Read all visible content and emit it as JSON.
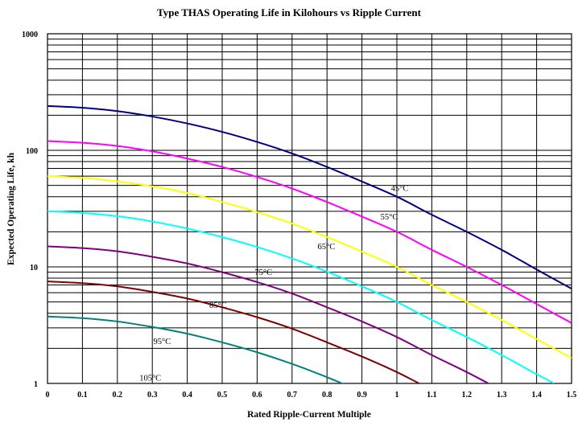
{
  "chart_data": {
    "type": "line",
    "title": "Type THAS Operating Life in Kilohours vs Ripple Current",
    "xlabel": "Rated Ripple-Current Multiple",
    "ylabel": "Expected Operating Life, kh",
    "xlim": [
      0,
      1.5
    ],
    "ylim": [
      1,
      1000
    ],
    "y_scale": "log",
    "grid": true,
    "legend": "none",
    "x_ticks": [
      "0",
      "0.1",
      "0.2",
      "0.3",
      "0.4",
      "0.5",
      "0.6",
      "0.7",
      "0.8",
      "0.9",
      "1",
      "1.1",
      "1.2",
      "1.3",
      "1.4",
      "1.5"
    ],
    "y_ticks": [
      "1",
      "10",
      "100",
      "1000"
    ],
    "series": [
      {
        "name": "45°C",
        "color": "#000080",
        "x": [
          0,
          0.1,
          0.2,
          0.3,
          0.4,
          0.5,
          0.6,
          0.7,
          0.8,
          0.9,
          1.0,
          1.1,
          1.2,
          1.3,
          1.4,
          1.5
        ],
        "y": [
          240,
          232,
          217,
          195,
          170,
          144,
          118,
          94,
          72,
          54,
          40,
          28,
          20,
          14,
          9.5,
          6.5
        ]
      },
      {
        "name": "55°C",
        "color": "#ff00ff",
        "x": [
          0,
          0.1,
          0.2,
          0.3,
          0.4,
          0.5,
          0.6,
          0.7,
          0.8,
          0.9,
          1.0,
          1.1,
          1.2,
          1.3,
          1.4,
          1.5
        ],
        "y": [
          120,
          116,
          109,
          98,
          85,
          72,
          59,
          47,
          36,
          27,
          20,
          14,
          10,
          7,
          4.8,
          3.3
        ]
      },
      {
        "name": "65°C",
        "color": "#ffff00",
        "x": [
          0,
          0.1,
          0.2,
          0.3,
          0.4,
          0.5,
          0.6,
          0.7,
          0.8,
          0.9,
          1.0,
          1.1,
          1.2,
          1.3,
          1.4,
          1.5
        ],
        "y": [
          60,
          58,
          54,
          49,
          43,
          36,
          29.5,
          23.5,
          18,
          13.5,
          10,
          7,
          5,
          3.5,
          2.4,
          1.65
        ]
      },
      {
        "name": "75°C",
        "color": "#00ffff",
        "x": [
          0,
          0.1,
          0.2,
          0.3,
          0.4,
          0.5,
          0.6,
          0.7,
          0.8,
          0.9,
          1.0,
          1.1,
          1.2,
          1.3,
          1.4,
          1.45
        ],
        "y": [
          30,
          29,
          27.2,
          24.5,
          21.3,
          18,
          14.8,
          11.8,
          9.1,
          6.8,
          5.0,
          3.5,
          2.5,
          1.75,
          1.2,
          1.0
        ]
      },
      {
        "name": "85°C",
        "color": "#800080",
        "x": [
          0,
          0.1,
          0.2,
          0.3,
          0.4,
          0.5,
          0.6,
          0.7,
          0.8,
          0.9,
          1.0,
          1.1,
          1.2,
          1.3
        ],
        "y": [
          15,
          14.5,
          13.6,
          12.2,
          10.7,
          9.0,
          7.4,
          5.9,
          4.5,
          3.4,
          2.5,
          1.75,
          1.25,
          0.87
        ]
      },
      {
        "name": "95°C",
        "color": "#800000",
        "x": [
          0,
          0.1,
          0.2,
          0.3,
          0.4,
          0.5,
          0.6,
          0.7,
          0.8,
          0.9,
          1.0,
          1.1,
          1.15
        ],
        "y": [
          7.5,
          7.25,
          6.8,
          6.1,
          5.35,
          4.5,
          3.7,
          2.95,
          2.25,
          1.7,
          1.25,
          0.88,
          0.75
        ]
      },
      {
        "name": "105°C",
        "color": "#008080",
        "x": [
          0,
          0.1,
          0.2,
          0.3,
          0.4,
          0.5,
          0.6,
          0.7,
          0.8,
          0.9,
          0.95
        ],
        "y": [
          3.75,
          3.63,
          3.4,
          3.05,
          2.67,
          2.25,
          1.85,
          1.47,
          1.13,
          0.85,
          0.75
        ]
      }
    ]
  }
}
